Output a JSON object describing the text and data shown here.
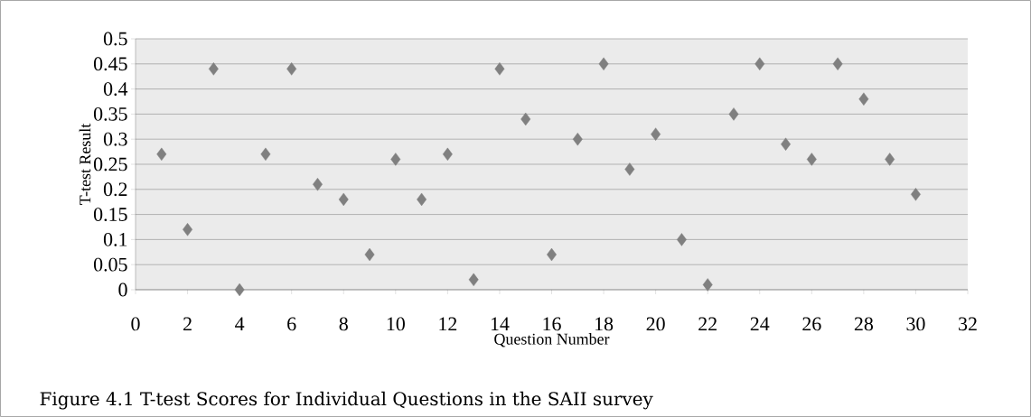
{
  "chart_data": {
    "type": "scatter",
    "xlabel": "Question Number",
    "ylabel": "T-test Result",
    "annotations": [
      "Figure 4.1 T-test Scores for Individual Questions in the SAII survey"
    ],
    "x": [
      1,
      2,
      3,
      4,
      5,
      6,
      7,
      8,
      9,
      10,
      11,
      12,
      13,
      14,
      15,
      16,
      17,
      18,
      19,
      20,
      21,
      22,
      23,
      24,
      25,
      26,
      27,
      28,
      29,
      30
    ],
    "series": [
      {
        "color": "#808080",
        "values": [
          0.27,
          0.12,
          0.44,
          0,
          0.27,
          0.44,
          0.21,
          0.18,
          0.07,
          0.26,
          0.18,
          0.27,
          0.02,
          0.44,
          0.34,
          0.07,
          0.3,
          0.45,
          0.24,
          0.31,
          0.1,
          0.01,
          0.35,
          0.45,
          0.29,
          0.26,
          0.45,
          0.38,
          0.26,
          0.19
        ]
      }
    ],
    "xlim": [
      0,
      32
    ],
    "xticks": [
      0,
      2,
      4,
      6,
      8,
      10,
      12,
      14,
      16,
      18,
      20,
      22,
      24,
      26,
      28,
      30,
      32
    ],
    "ylim": [
      0,
      0.5
    ],
    "yticks": [
      0,
      0.05,
      0.1,
      0.15,
      0.2,
      0.25,
      0.3,
      0.35,
      0.4,
      0.45,
      0.5
    ],
    "grid": "y",
    "marker": "diamond"
  }
}
